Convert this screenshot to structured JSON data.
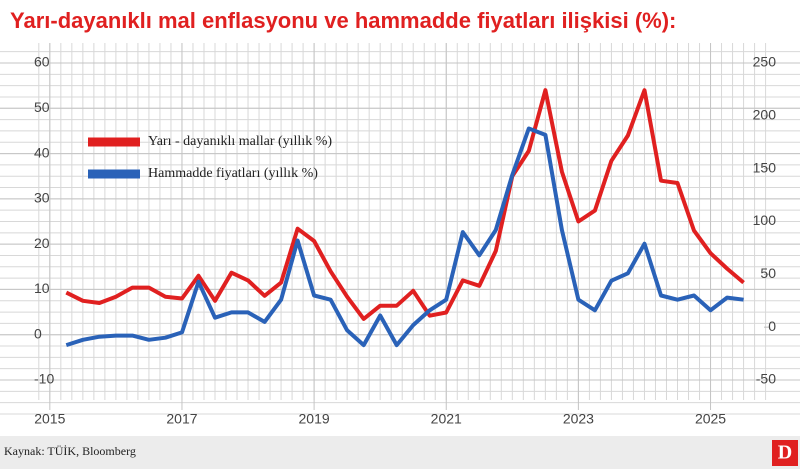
{
  "chart_data": {
    "type": "line",
    "title": "Yarı-dayanıklı mal enflasyonu ve hammadde fiyatları ilişkisi (%):",
    "source": "Kaynak: TÜİK, Bloomberg",
    "logo": "D",
    "x": [
      2015.25,
      2015.5,
      2015.75,
      2016.0,
      2016.25,
      2016.5,
      2016.75,
      2017.0,
      2017.25,
      2017.5,
      2017.75,
      2018.0,
      2018.25,
      2018.5,
      2018.75,
      2019.0,
      2019.25,
      2019.5,
      2019.75,
      2020.0,
      2020.25,
      2020.5,
      2020.75,
      2021.0,
      2021.25,
      2021.5,
      2021.75,
      2022.0,
      2022.25,
      2022.5,
      2022.75,
      2023.0,
      2023.25,
      2023.5,
      2023.75,
      2024.0,
      2024.25,
      2024.5,
      2024.75,
      2025.0,
      2025.25,
      2025.5
    ],
    "series": [
      {
        "name": "Yarı - dayanıklı mallar (yıllık %)",
        "color": "#e02020",
        "values": [
          9.3,
          7.5,
          7,
          8.4,
          10.4,
          10.4,
          8.4,
          8,
          13,
          7.5,
          13.7,
          12,
          8.6,
          11.5,
          23.4,
          20.7,
          14,
          8.4,
          3.5,
          6.4,
          6.4,
          9.7,
          4.2,
          4.9,
          12,
          10.8,
          18.5,
          35,
          40.6,
          54,
          36,
          25,
          27.4,
          38.4,
          44,
          54,
          34,
          33.5,
          23,
          18,
          14.6,
          11.5
        ]
      },
      {
        "name": "Hammadde fiyatları (yıllık %)",
        "color": "#2a62b8",
        "axis": "y2",
        "values": [
          -17,
          -12,
          -9,
          -8,
          -8,
          -12,
          -10,
          -5,
          43,
          9,
          14,
          14,
          5,
          26,
          82,
          30,
          26,
          -3,
          -17,
          11,
          -17,
          2,
          16,
          26,
          90,
          68,
          92,
          144,
          188,
          182,
          92,
          26,
          16,
          44,
          51,
          79,
          30,
          26,
          30,
          16,
          28,
          26
        ]
      }
    ],
    "xlim": [
      2014.7,
      2025.9
    ],
    "xticks": [
      2015,
      2017,
      2019,
      2021,
      2023,
      2025
    ],
    "ylim": [
      -10,
      60
    ],
    "yticks": [
      -10,
      0,
      10,
      20,
      30,
      40,
      50,
      60
    ],
    "y2lim": [
      -50,
      250
    ],
    "y2ticks": [
      -50,
      0,
      50,
      100,
      150,
      200,
      250
    ],
    "grid": true
  }
}
